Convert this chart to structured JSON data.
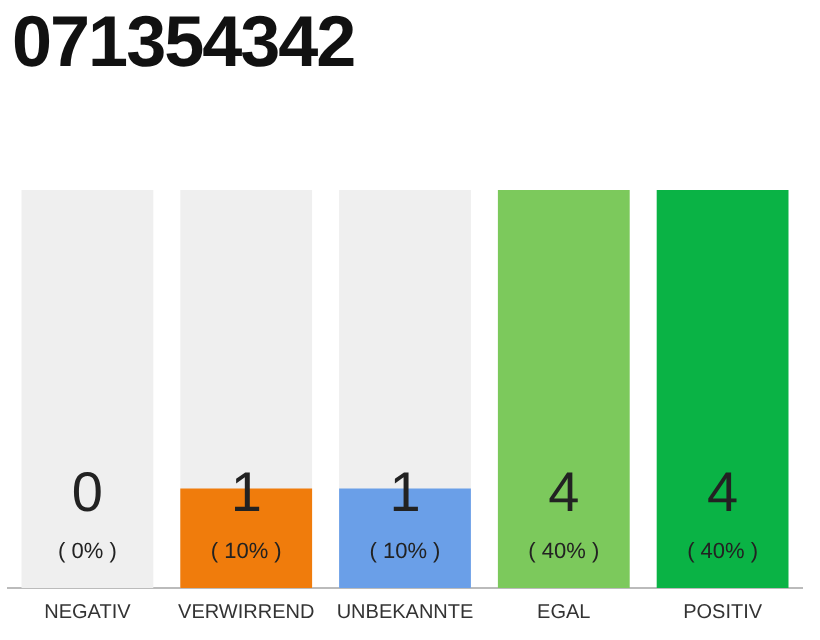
{
  "chart_data": {
    "type": "bar",
    "title": "071354342",
    "categories": [
      "NEGATIV",
      "VERWIRREND",
      "UNBEKANNTE",
      "EGAL",
      "POSITIV"
    ],
    "values": [
      0,
      1,
      1,
      4,
      4
    ],
    "colors": [
      "#9e9e9e",
      "#f07c0c",
      "#6a9fe8",
      "#7cc95c",
      "#0ab345"
    ],
    "value_labels": [
      "0\n( 0% )",
      "1\n( 10% )",
      "1\n( 10% )",
      "4\n( 40% )",
      "4\n( 40% )"
    ],
    "bands": [
      {
        "axis": "x",
        "from": "NEGATIV",
        "to": "NEGATIV",
        "color": "#efefef"
      },
      {
        "axis": "x",
        "from": "VERWIRREND",
        "to": "VERWIRREND",
        "color": "#efefef"
      },
      {
        "axis": "x",
        "from": "UNBEKANNTE",
        "to": "UNBEKANNTE",
        "color": "#efefef"
      }
    ],
    "grid": false,
    "legend": false,
    "tick_labels": "x"
  }
}
